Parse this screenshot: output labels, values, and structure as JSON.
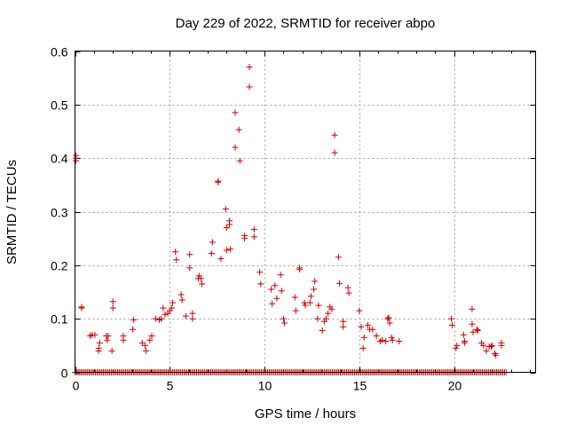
{
  "chart_data": {
    "type": "scatter",
    "title": "Day 229 of 2022, SRMTID for receiver abpo",
    "xlabel": "GPS time / hours",
    "ylabel": "SRMTID / TECUs",
    "xlim": [
      0,
      24.3
    ],
    "ylim": [
      0,
      0.6
    ],
    "xticks": [
      0,
      5,
      10,
      15,
      20
    ],
    "yticks": [
      0,
      0.1,
      0.2,
      0.3,
      0.4,
      0.5,
      0.6
    ],
    "xtick_labels": [
      "0",
      "5",
      "10",
      "15",
      "20"
    ],
    "ytick_labels": [
      "0",
      "0.1",
      "0.2",
      "0.3",
      "0.4",
      "0.5",
      "0.6"
    ],
    "grid": true,
    "marker": "+",
    "color": "#cc0000",
    "zero_series": {
      "x_start": 0.0,
      "x_end": 22.8,
      "step": 0.0833,
      "y": 0
    },
    "series": [
      {
        "name": "SRMTID",
        "points": [
          [
            0.05,
            0.4
          ],
          [
            0.05,
            0.395
          ],
          [
            0.05,
            0.405
          ],
          [
            0.35,
            0.12
          ],
          [
            0.35,
            0.122
          ],
          [
            0.8,
            0.068
          ],
          [
            0.9,
            0.07
          ],
          [
            1.05,
            0.07
          ],
          [
            1.25,
            0.04
          ],
          [
            1.25,
            0.045
          ],
          [
            1.3,
            0.055
          ],
          [
            1.65,
            0.068
          ],
          [
            1.7,
            0.06
          ],
          [
            1.75,
            0.068
          ],
          [
            1.95,
            0.04
          ],
          [
            2.0,
            0.12
          ],
          [
            2.0,
            0.132
          ],
          [
            2.55,
            0.06
          ],
          [
            2.55,
            0.068
          ],
          [
            3.05,
            0.08
          ],
          [
            3.1,
            0.098
          ],
          [
            3.55,
            0.055
          ],
          [
            3.7,
            0.05
          ],
          [
            3.75,
            0.04
          ],
          [
            3.95,
            0.06
          ],
          [
            4.05,
            0.068
          ],
          [
            4.25,
            0.1
          ],
          [
            4.45,
            0.098
          ],
          [
            4.55,
            0.1
          ],
          [
            4.65,
            0.12
          ],
          [
            4.75,
            0.108
          ],
          [
            4.9,
            0.11
          ],
          [
            5.0,
            0.115
          ],
          [
            5.1,
            0.12
          ],
          [
            5.15,
            0.13
          ],
          [
            5.3,
            0.225
          ],
          [
            5.35,
            0.21
          ],
          [
            5.6,
            0.145
          ],
          [
            5.65,
            0.135
          ],
          [
            5.85,
            0.105
          ],
          [
            6.05,
            0.22
          ],
          [
            6.05,
            0.195
          ],
          [
            6.2,
            0.1
          ],
          [
            6.2,
            0.11
          ],
          [
            6.5,
            0.175
          ],
          [
            6.55,
            0.18
          ],
          [
            6.65,
            0.175
          ],
          [
            6.7,
            0.165
          ],
          [
            7.2,
            0.222
          ],
          [
            7.25,
            0.243
          ],
          [
            7.55,
            0.355
          ],
          [
            7.55,
            0.357
          ],
          [
            7.7,
            0.212
          ],
          [
            7.95,
            0.305
          ],
          [
            8.0,
            0.27
          ],
          [
            8.0,
            0.228
          ],
          [
            8.15,
            0.283
          ],
          [
            8.15,
            0.276
          ],
          [
            8.2,
            0.23
          ],
          [
            8.45,
            0.485
          ],
          [
            8.45,
            0.42
          ],
          [
            8.65,
            0.453
          ],
          [
            8.7,
            0.395
          ],
          [
            8.95,
            0.255
          ],
          [
            8.95,
            0.25
          ],
          [
            9.2,
            0.57
          ],
          [
            9.2,
            0.533
          ],
          [
            9.45,
            0.267
          ],
          [
            9.45,
            0.253
          ],
          [
            9.75,
            0.187
          ],
          [
            9.8,
            0.165
          ],
          [
            10.35,
            0.155
          ],
          [
            10.4,
            0.128
          ],
          [
            10.55,
            0.162
          ],
          [
            10.65,
            0.138
          ],
          [
            10.85,
            0.182
          ],
          [
            10.9,
            0.152
          ],
          [
            11.0,
            0.1
          ],
          [
            11.05,
            0.092
          ],
          [
            11.6,
            0.14
          ],
          [
            11.65,
            0.115
          ],
          [
            11.85,
            0.195
          ],
          [
            11.85,
            0.192
          ],
          [
            12.1,
            0.13
          ],
          [
            12.15,
            0.125
          ],
          [
            12.4,
            0.13
          ],
          [
            12.45,
            0.142
          ],
          [
            12.6,
            0.155
          ],
          [
            12.65,
            0.17
          ],
          [
            12.8,
            0.1
          ],
          [
            12.85,
            0.125
          ],
          [
            13.05,
            0.078
          ],
          [
            13.15,
            0.095
          ],
          [
            13.25,
            0.1
          ],
          [
            13.35,
            0.11
          ],
          [
            13.45,
            0.122
          ],
          [
            13.55,
            0.118
          ],
          [
            13.7,
            0.443
          ],
          [
            13.7,
            0.41
          ],
          [
            13.9,
            0.215
          ],
          [
            13.95,
            0.166
          ],
          [
            14.15,
            0.085
          ],
          [
            14.15,
            0.095
          ],
          [
            14.4,
            0.158
          ],
          [
            14.45,
            0.148
          ],
          [
            15.0,
            0.115
          ],
          [
            15.1,
            0.085
          ],
          [
            15.2,
            0.045
          ],
          [
            15.25,
            0.065
          ],
          [
            15.45,
            0.088
          ],
          [
            15.55,
            0.08
          ],
          [
            15.7,
            0.08
          ],
          [
            15.9,
            0.068
          ],
          [
            16.1,
            0.058
          ],
          [
            16.2,
            0.06
          ],
          [
            16.4,
            0.058
          ],
          [
            16.5,
            0.1
          ],
          [
            16.55,
            0.102
          ],
          [
            16.6,
            0.092
          ],
          [
            16.7,
            0.065
          ],
          [
            16.75,
            0.06
          ],
          [
            17.1,
            0.058
          ],
          [
            19.85,
            0.1
          ],
          [
            19.9,
            0.088
          ],
          [
            20.1,
            0.045
          ],
          [
            20.15,
            0.05
          ],
          [
            20.5,
            0.07
          ],
          [
            20.55,
            0.055
          ],
          [
            20.55,
            0.058
          ],
          [
            20.95,
            0.118
          ],
          [
            20.95,
            0.09
          ],
          [
            21.0,
            0.075
          ],
          [
            21.2,
            0.08
          ],
          [
            21.25,
            0.078
          ],
          [
            21.45,
            0.055
          ],
          [
            21.55,
            0.05
          ],
          [
            21.7,
            0.04
          ],
          [
            21.85,
            0.048
          ],
          [
            21.95,
            0.048
          ],
          [
            22.0,
            0.05
          ],
          [
            22.15,
            0.035
          ],
          [
            22.2,
            0.032
          ],
          [
            22.5,
            0.055
          ],
          [
            22.5,
            0.05
          ]
        ]
      }
    ]
  }
}
